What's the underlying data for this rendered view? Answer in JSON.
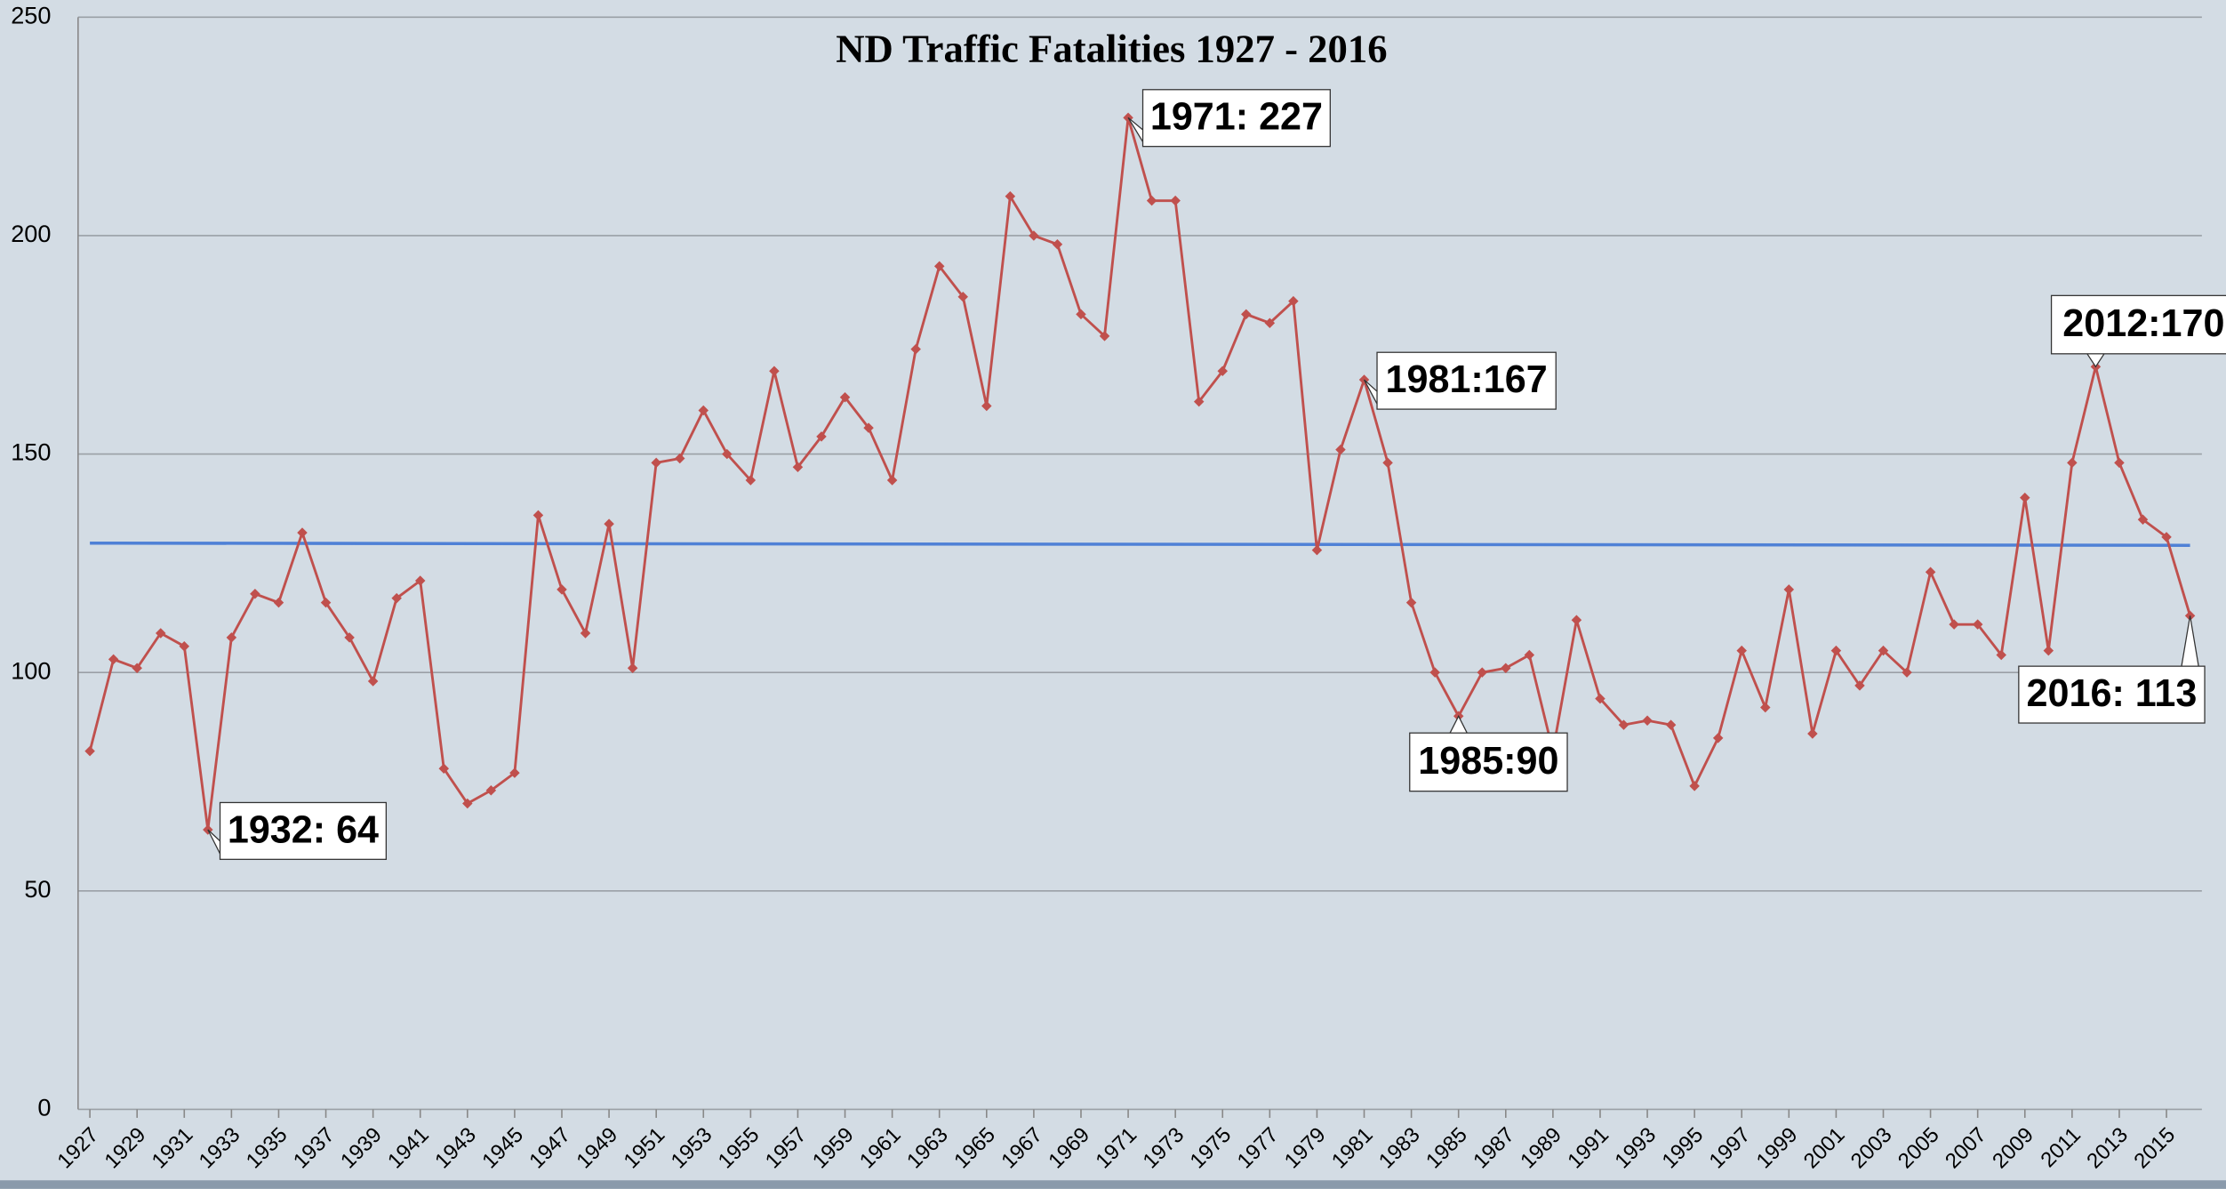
{
  "chart_data": {
    "type": "line",
    "title": "ND Traffic Fatalities 1927 - 2016",
    "x": [
      1927,
      1928,
      1929,
      1930,
      1931,
      1932,
      1933,
      1934,
      1935,
      1936,
      1937,
      1938,
      1939,
      1940,
      1941,
      1942,
      1943,
      1944,
      1945,
      1946,
      1947,
      1948,
      1949,
      1950,
      1951,
      1952,
      1953,
      1954,
      1955,
      1956,
      1957,
      1958,
      1959,
      1960,
      1961,
      1962,
      1963,
      1964,
      1965,
      1966,
      1967,
      1968,
      1969,
      1970,
      1971,
      1972,
      1973,
      1974,
      1975,
      1976,
      1977,
      1978,
      1979,
      1980,
      1981,
      1982,
      1983,
      1984,
      1985,
      1986,
      1987,
      1988,
      1989,
      1990,
      1991,
      1992,
      1993,
      1994,
      1995,
      1996,
      1997,
      1998,
      1999,
      2000,
      2001,
      2002,
      2003,
      2004,
      2005,
      2006,
      2007,
      2008,
      2009,
      2010,
      2011,
      2012,
      2013,
      2014,
      2015,
      2016
    ],
    "series": [
      {
        "color": "#c0504d",
        "values": [
          82,
          103,
          101,
          109,
          106,
          64,
          108,
          118,
          116,
          132,
          116,
          108,
          98,
          117,
          121,
          78,
          70,
          73,
          77,
          136,
          119,
          109,
          134,
          101,
          148,
          149,
          160,
          150,
          144,
          169,
          147,
          154,
          163,
          156,
          144,
          174,
          193,
          186,
          161,
          209,
          200,
          198,
          182,
          177,
          227,
          208,
          208,
          162,
          169,
          182,
          180,
          185,
          128,
          151,
          167,
          148,
          116,
          100,
          90,
          100,
          101,
          104,
          82,
          112,
          94,
          88,
          89,
          88,
          74,
          85,
          105,
          92,
          119,
          86,
          105,
          97,
          105,
          100,
          123,
          111,
          111,
          104,
          140,
          105,
          148,
          170,
          148,
          135,
          131,
          113
        ]
      }
    ],
    "trendline": {
      "color": "#4f81d6",
      "values": [
        129.6,
        129.1
      ]
    },
    "xlim": [
      1926.5,
      2016.5
    ],
    "xticks": [
      1927,
      1929,
      1931,
      1933,
      1935,
      1937,
      1939,
      1941,
      1943,
      1945,
      1947,
      1949,
      1951,
      1953,
      1955,
      1957,
      1959,
      1961,
      1963,
      1965,
      1967,
      1969,
      1971,
      1973,
      1975,
      1977,
      1979,
      1981,
      1983,
      1985,
      1987,
      1989,
      1991,
      1993,
      1995,
      1997,
      1999,
      2001,
      2003,
      2005,
      2007,
      2009,
      2011,
      2013,
      2015
    ],
    "ylim": [
      0,
      250
    ],
    "yticks": [
      0,
      50,
      100,
      150,
      200,
      250
    ],
    "grid": true,
    "annotations": [
      "1932: 64",
      "1971: 227",
      "1981:167",
      "1985:90",
      "2012:170",
      "2016: 113"
    ]
  }
}
